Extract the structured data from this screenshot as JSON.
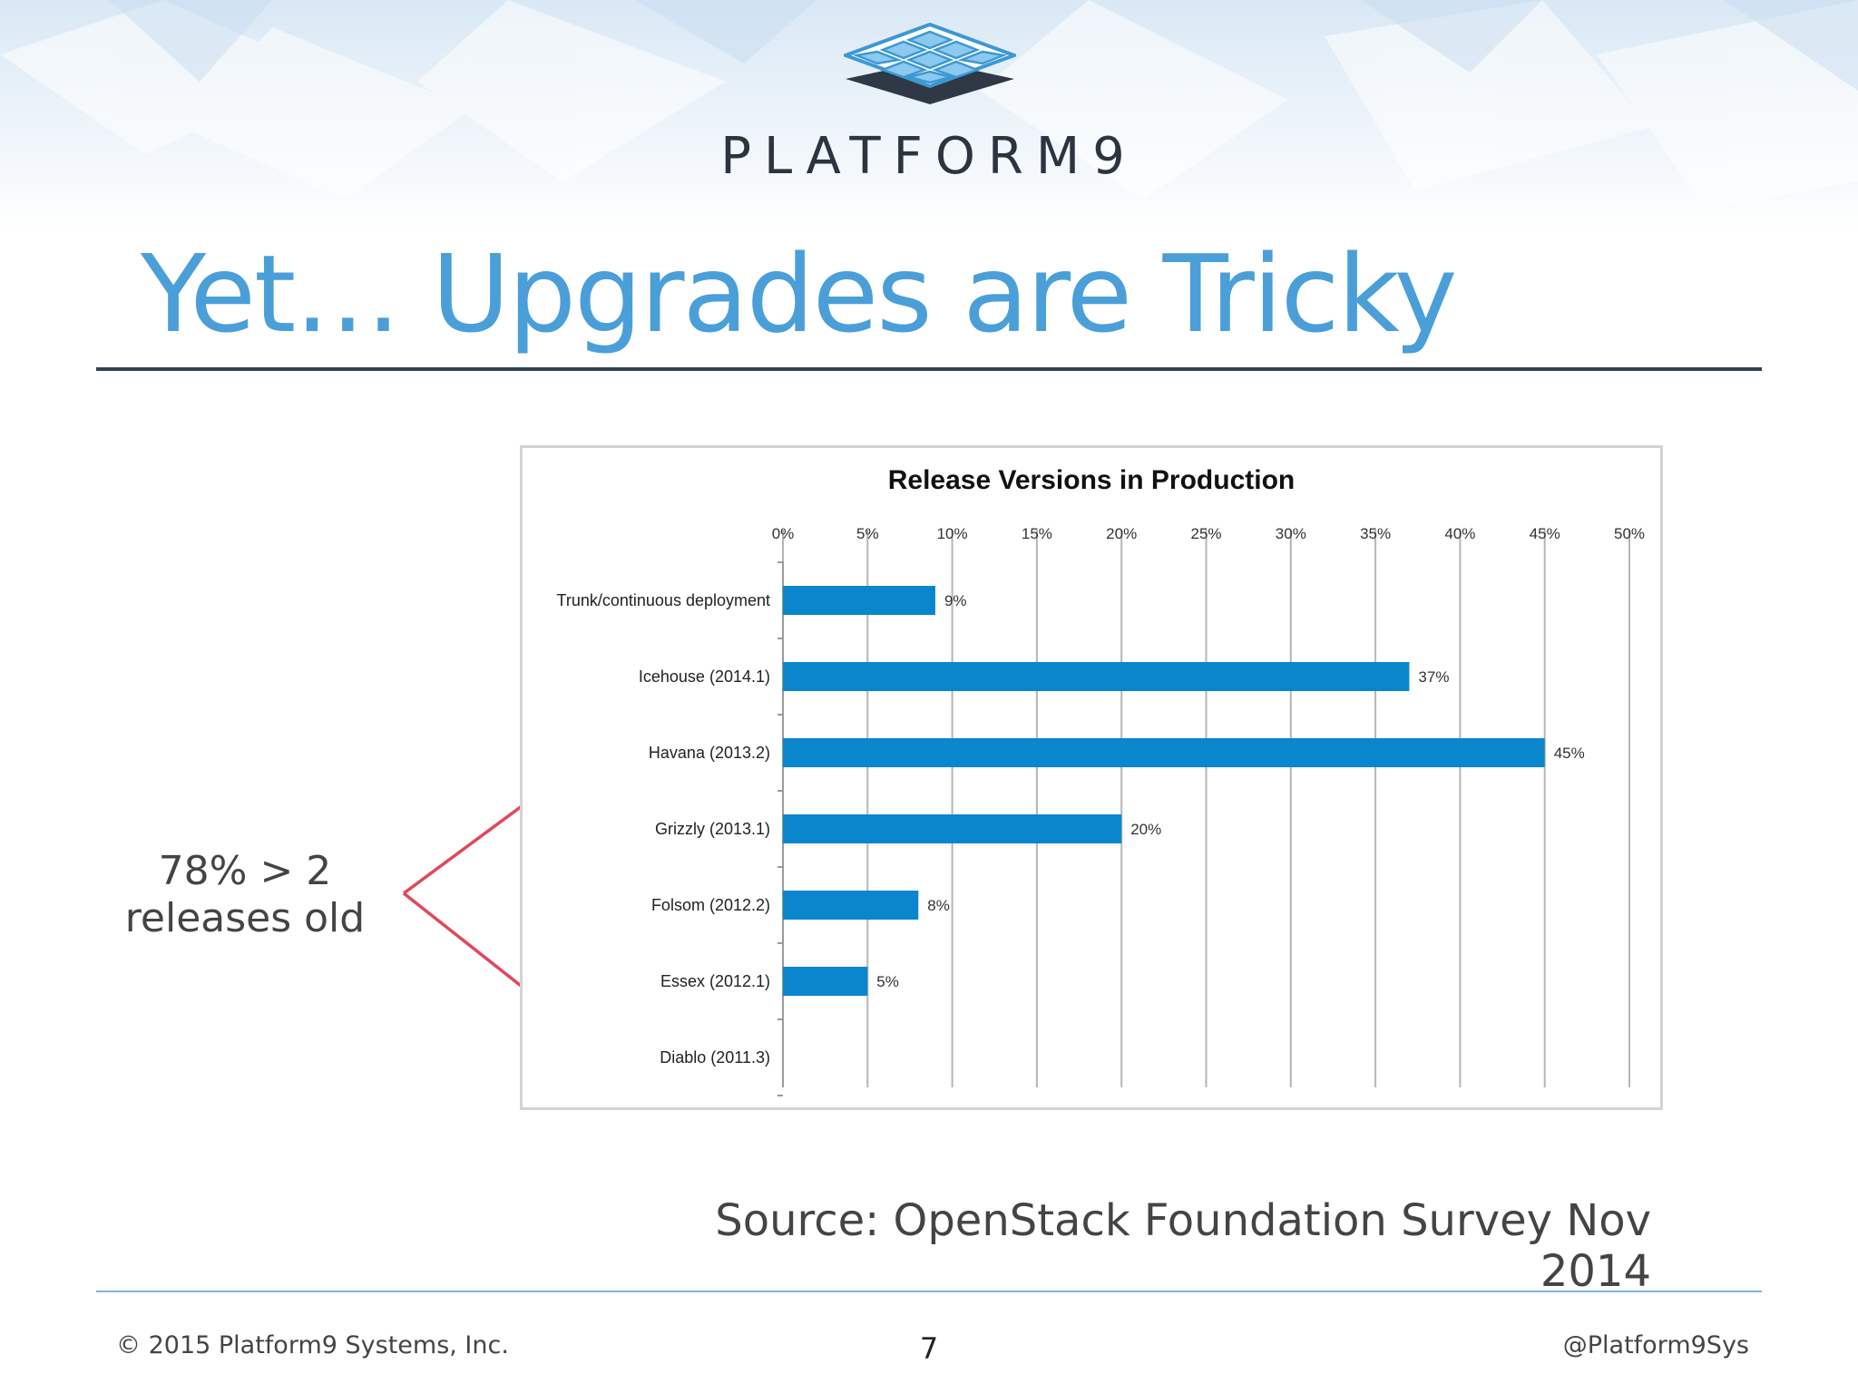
{
  "brand": {
    "name": "PLATFORM9"
  },
  "slide": {
    "title": "Yet… Upgrades are Tricky",
    "annotation_line1": "78% > 2",
    "annotation_line2": "releases old",
    "source": "Source: OpenStack Foundation Survey Nov 2014"
  },
  "footer": {
    "copyright": "© 2015 Platform9 Systems, Inc.",
    "page_number": "7",
    "handle": "@Platform9Sys"
  },
  "colors": {
    "accent": "#4b9fd8",
    "bar": "#0a86cc",
    "arrow": "#e0485a",
    "rule": "#2f4257"
  },
  "chart_data": {
    "type": "bar",
    "orientation": "horizontal",
    "title": "Release Versions in Production",
    "categories": [
      "Trunk/continuous deployment",
      "Icehouse (2014.1)",
      "Havana (2013.2)",
      "Grizzly (2013.1)",
      "Folsom (2012.2)",
      "Essex (2012.1)",
      "Diablo (2011.3)"
    ],
    "values": [
      9,
      37,
      45,
      20,
      8,
      5,
      0
    ],
    "value_labels": [
      "9%",
      "37%",
      "45%",
      "20%",
      "8%",
      "5%",
      ""
    ],
    "xticks": [
      0,
      5,
      10,
      15,
      20,
      25,
      30,
      35,
      40,
      45,
      50
    ],
    "xtick_labels": [
      "0%",
      "5%",
      "10%",
      "15%",
      "20%",
      "25%",
      "30%",
      "35%",
      "40%",
      "45%",
      "50%"
    ],
    "xlim": [
      0,
      50
    ],
    "xlabel": "",
    "ylabel": "",
    "grid": true,
    "axis_position": "top"
  }
}
